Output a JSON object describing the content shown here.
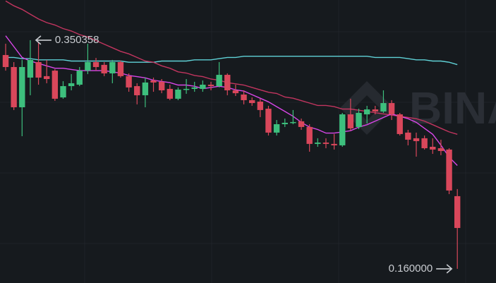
{
  "chart_data": {
    "type": "candlestick",
    "ylim": [
      0.1482,
      0.3838
    ],
    "up_color": "#3dbf7d",
    "down_color": "#d9475b",
    "open": [
      0.338,
      0.328,
      0.2945,
      0.3192,
      0.3321,
      0.3204,
      0.325,
      0.3027,
      0.3121,
      0.3133,
      0.325,
      0.3321,
      0.3298,
      0.3227,
      0.3321,
      0.3204,
      0.3121,
      0.3045,
      0.3168,
      0.3157,
      0.3098,
      0.3016,
      0.3092,
      0.3098,
      0.3098,
      0.3133,
      0.3121,
      0.3215,
      0.3086,
      0.3051,
      0.3004,
      0.2992,
      0.2933,
      0.2734,
      0.2804,
      0.2816,
      0.2828,
      0.2781,
      0.264,
      0.2651,
      0.264,
      0.2628,
      0.2886,
      0.2781,
      0.2886,
      0.2927,
      0.291,
      0.298,
      0.2886,
      0.2734,
      0.2687,
      0.2687,
      0.2616,
      0.2604,
      0.2593,
      0.2205
    ],
    "high": [
      0.3474,
      0.3321,
      0.3339,
      0.350358,
      0.3486,
      0.3339,
      0.3262,
      0.3162,
      0.3221,
      0.328,
      0.3474,
      0.3356,
      0.3321,
      0.3339,
      0.3333,
      0.3227,
      0.3145,
      0.3192,
      0.3192,
      0.318,
      0.3133,
      0.311,
      0.318,
      0.3157,
      0.3168,
      0.3157,
      0.3321,
      0.3227,
      0.3133,
      0.3086,
      0.3027,
      0.3016,
      0.2957,
      0.2839,
      0.2851,
      0.2922,
      0.2851,
      0.2804,
      0.2687,
      0.2687,
      0.2722,
      0.2898,
      0.3016,
      0.2933,
      0.2957,
      0.2957,
      0.3086,
      0.3004,
      0.2898,
      0.2757,
      0.2734,
      0.271,
      0.2687,
      0.2675,
      0.2604,
      0.2264
    ],
    "low": [
      0.325,
      0.2922,
      0.2704,
      0.3045,
      0.3133,
      0.3145,
      0.2998,
      0.3016,
      0.3086,
      0.3121,
      0.3221,
      0.325,
      0.3204,
      0.3145,
      0.3192,
      0.3074,
      0.2969,
      0.2945,
      0.3074,
      0.3062,
      0.3004,
      0.3004,
      0.3057,
      0.3074,
      0.3074,
      0.3086,
      0.311,
      0.3045,
      0.3039,
      0.2969,
      0.2957,
      0.2863,
      0.271,
      0.271,
      0.2781,
      0.2804,
      0.2757,
      0.2575,
      0.2616,
      0.2604,
      0.2593,
      0.2616,
      0.2751,
      0.2763,
      0.281,
      0.2886,
      0.2898,
      0.2839,
      0.271,
      0.2628,
      0.2534,
      0.2593,
      0.2557,
      0.2546,
      0.2222,
      0.16
    ],
    "close": [
      0.328,
      0.2945,
      0.328,
      0.3339,
      0.3192,
      0.318,
      0.3016,
      0.3121,
      0.3145,
      0.325,
      0.3321,
      0.328,
      0.3227,
      0.3321,
      0.3204,
      0.311,
      0.3045,
      0.3151,
      0.3151,
      0.3086,
      0.3016,
      0.3092,
      0.3098,
      0.311,
      0.3133,
      0.3121,
      0.3215,
      0.3086,
      0.3062,
      0.3004,
      0.298,
      0.2922,
      0.2734,
      0.2804,
      0.2816,
      0.2822,
      0.2781,
      0.264,
      0.2651,
      0.264,
      0.2628,
      0.2886,
      0.2769,
      0.2898,
      0.2927,
      0.291,
      0.298,
      0.2886,
      0.2722,
      0.2675,
      0.2663,
      0.2604,
      0.2593,
      0.2581,
      0.2252,
      0.194
    ],
    "series": [
      {
        "color": "#5fd1d6",
        "values": [
          0.336,
          0.336,
          0.335,
          0.335,
          0.334,
          0.334,
          0.334,
          0.334,
          0.333,
          0.333,
          0.333,
          0.333,
          0.333,
          0.333,
          0.333,
          0.332,
          0.332,
          0.332,
          0.332,
          0.333,
          0.333,
          0.333,
          0.333,
          0.334,
          0.334,
          0.334,
          0.335,
          0.336,
          0.336,
          0.337,
          0.337,
          0.337,
          0.337,
          0.337,
          0.337,
          0.337,
          0.337,
          0.337,
          0.337,
          0.337,
          0.337,
          0.337,
          0.337,
          0.337,
          0.337,
          0.336,
          0.336,
          0.336,
          0.336,
          0.335,
          0.334,
          0.334,
          0.333,
          0.333,
          0.332,
          0.33
        ]
      },
      {
        "color": "#c2355f",
        "values": [
          0.383,
          0.379,
          0.376,
          0.372,
          0.368,
          0.365,
          0.363,
          0.36,
          0.358,
          0.355,
          0.353,
          0.35,
          0.347,
          0.344,
          0.341,
          0.339,
          0.336,
          0.333,
          0.332,
          0.329,
          0.327,
          0.324,
          0.323,
          0.321,
          0.32,
          0.318,
          0.317,
          0.315,
          0.314,
          0.313,
          0.311,
          0.309,
          0.307,
          0.306,
          0.303,
          0.302,
          0.3,
          0.298,
          0.296,
          0.296,
          0.295,
          0.293,
          0.293,
          0.292,
          0.291,
          0.29,
          0.289,
          0.288,
          0.287,
          0.286,
          0.285,
          0.283,
          0.28,
          0.277,
          0.274,
          0.272
        ]
      },
      {
        "color": "#d946e8",
        "values": [
          0.354,
          0.345,
          0.336,
          0.333,
          0.331,
          0.329,
          0.327,
          0.327,
          0.326,
          0.325,
          0.325,
          0.325,
          0.325,
          0.324,
          0.323,
          0.321,
          0.32,
          0.319,
          0.317,
          0.316,
          0.315,
          0.313,
          0.313,
          0.312,
          0.31,
          0.311,
          0.312,
          0.311,
          0.309,
          0.308,
          0.305,
          0.302,
          0.299,
          0.295,
          0.291,
          0.287,
          0.282,
          0.278,
          0.276,
          0.273,
          0.273,
          0.274,
          0.275,
          0.278,
          0.28,
          0.283,
          0.286,
          0.289,
          0.287,
          0.285,
          0.282,
          0.277,
          0.272,
          0.263,
          0.253,
          0.246
        ]
      }
    ],
    "annotations": {
      "max": "0.350358",
      "min": "0.160000"
    },
    "watermark": "BINANCE"
  }
}
